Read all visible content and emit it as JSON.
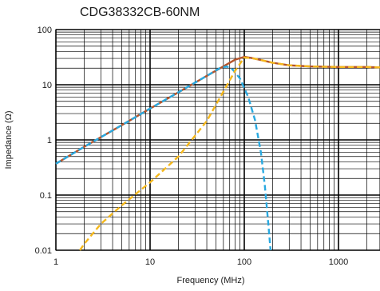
{
  "chart_data": {
    "type": "line",
    "title": "CDG38332CB-60NM",
    "xlabel": "Frequency (MHz)",
    "ylabel": "Impedance (Ω)",
    "xscale": "log",
    "yscale": "log",
    "xlim": [
      1,
      3000
    ],
    "ylim": [
      0.01,
      100
    ],
    "x_ticks": [
      {
        "value": 1,
        "label": "1"
      },
      {
        "value": 10,
        "label": "10"
      },
      {
        "value": 100,
        "label": "100"
      },
      {
        "value": 1000,
        "label": "1000"
      }
    ],
    "y_ticks": [
      {
        "value": 0.01,
        "label": "0.01"
      },
      {
        "value": 0.1,
        "label": "0.1"
      },
      {
        "value": 1,
        "label": "1"
      },
      {
        "value": 10,
        "label": "10"
      },
      {
        "value": 100,
        "label": "100"
      }
    ],
    "grid": true,
    "legend": "none",
    "series": [
      {
        "color": "#b5542a",
        "dash": "solid",
        "x": [
          1,
          2,
          5,
          10,
          20,
          40,
          60,
          80,
          100,
          120,
          150,
          200,
          300,
          500,
          1000,
          2000,
          3000
        ],
        "y": [
          0.37,
          0.75,
          1.85,
          3.7,
          7.3,
          14.5,
          21.5,
          28.5,
          32,
          30.5,
          28,
          25,
          22.5,
          21.5,
          21,
          21,
          20.5
        ]
      },
      {
        "color": "#29a9e0",
        "dash": "dashed",
        "x": [
          1,
          2,
          5,
          10,
          20,
          40,
          55,
          65,
          75,
          90,
          110,
          130,
          150,
          165,
          180,
          190
        ],
        "y": [
          0.37,
          0.75,
          1.85,
          3.7,
          7.3,
          14.5,
          20,
          21.5,
          19,
          13,
          6,
          2.3,
          0.6,
          0.15,
          0.03,
          0.01
        ]
      },
      {
        "color": "#f5b81c",
        "dash": "dashed",
        "x": [
          1.8,
          2,
          3,
          5,
          10,
          20,
          40,
          60,
          80,
          100,
          120,
          150,
          200,
          300,
          500,
          1000,
          2000,
          3000
        ],
        "y": [
          0.01,
          0.013,
          0.03,
          0.065,
          0.17,
          0.5,
          2.2,
          7.5,
          18,
          31,
          30.5,
          28,
          25,
          22.5,
          21.5,
          21,
          21,
          20.5
        ]
      }
    ]
  }
}
